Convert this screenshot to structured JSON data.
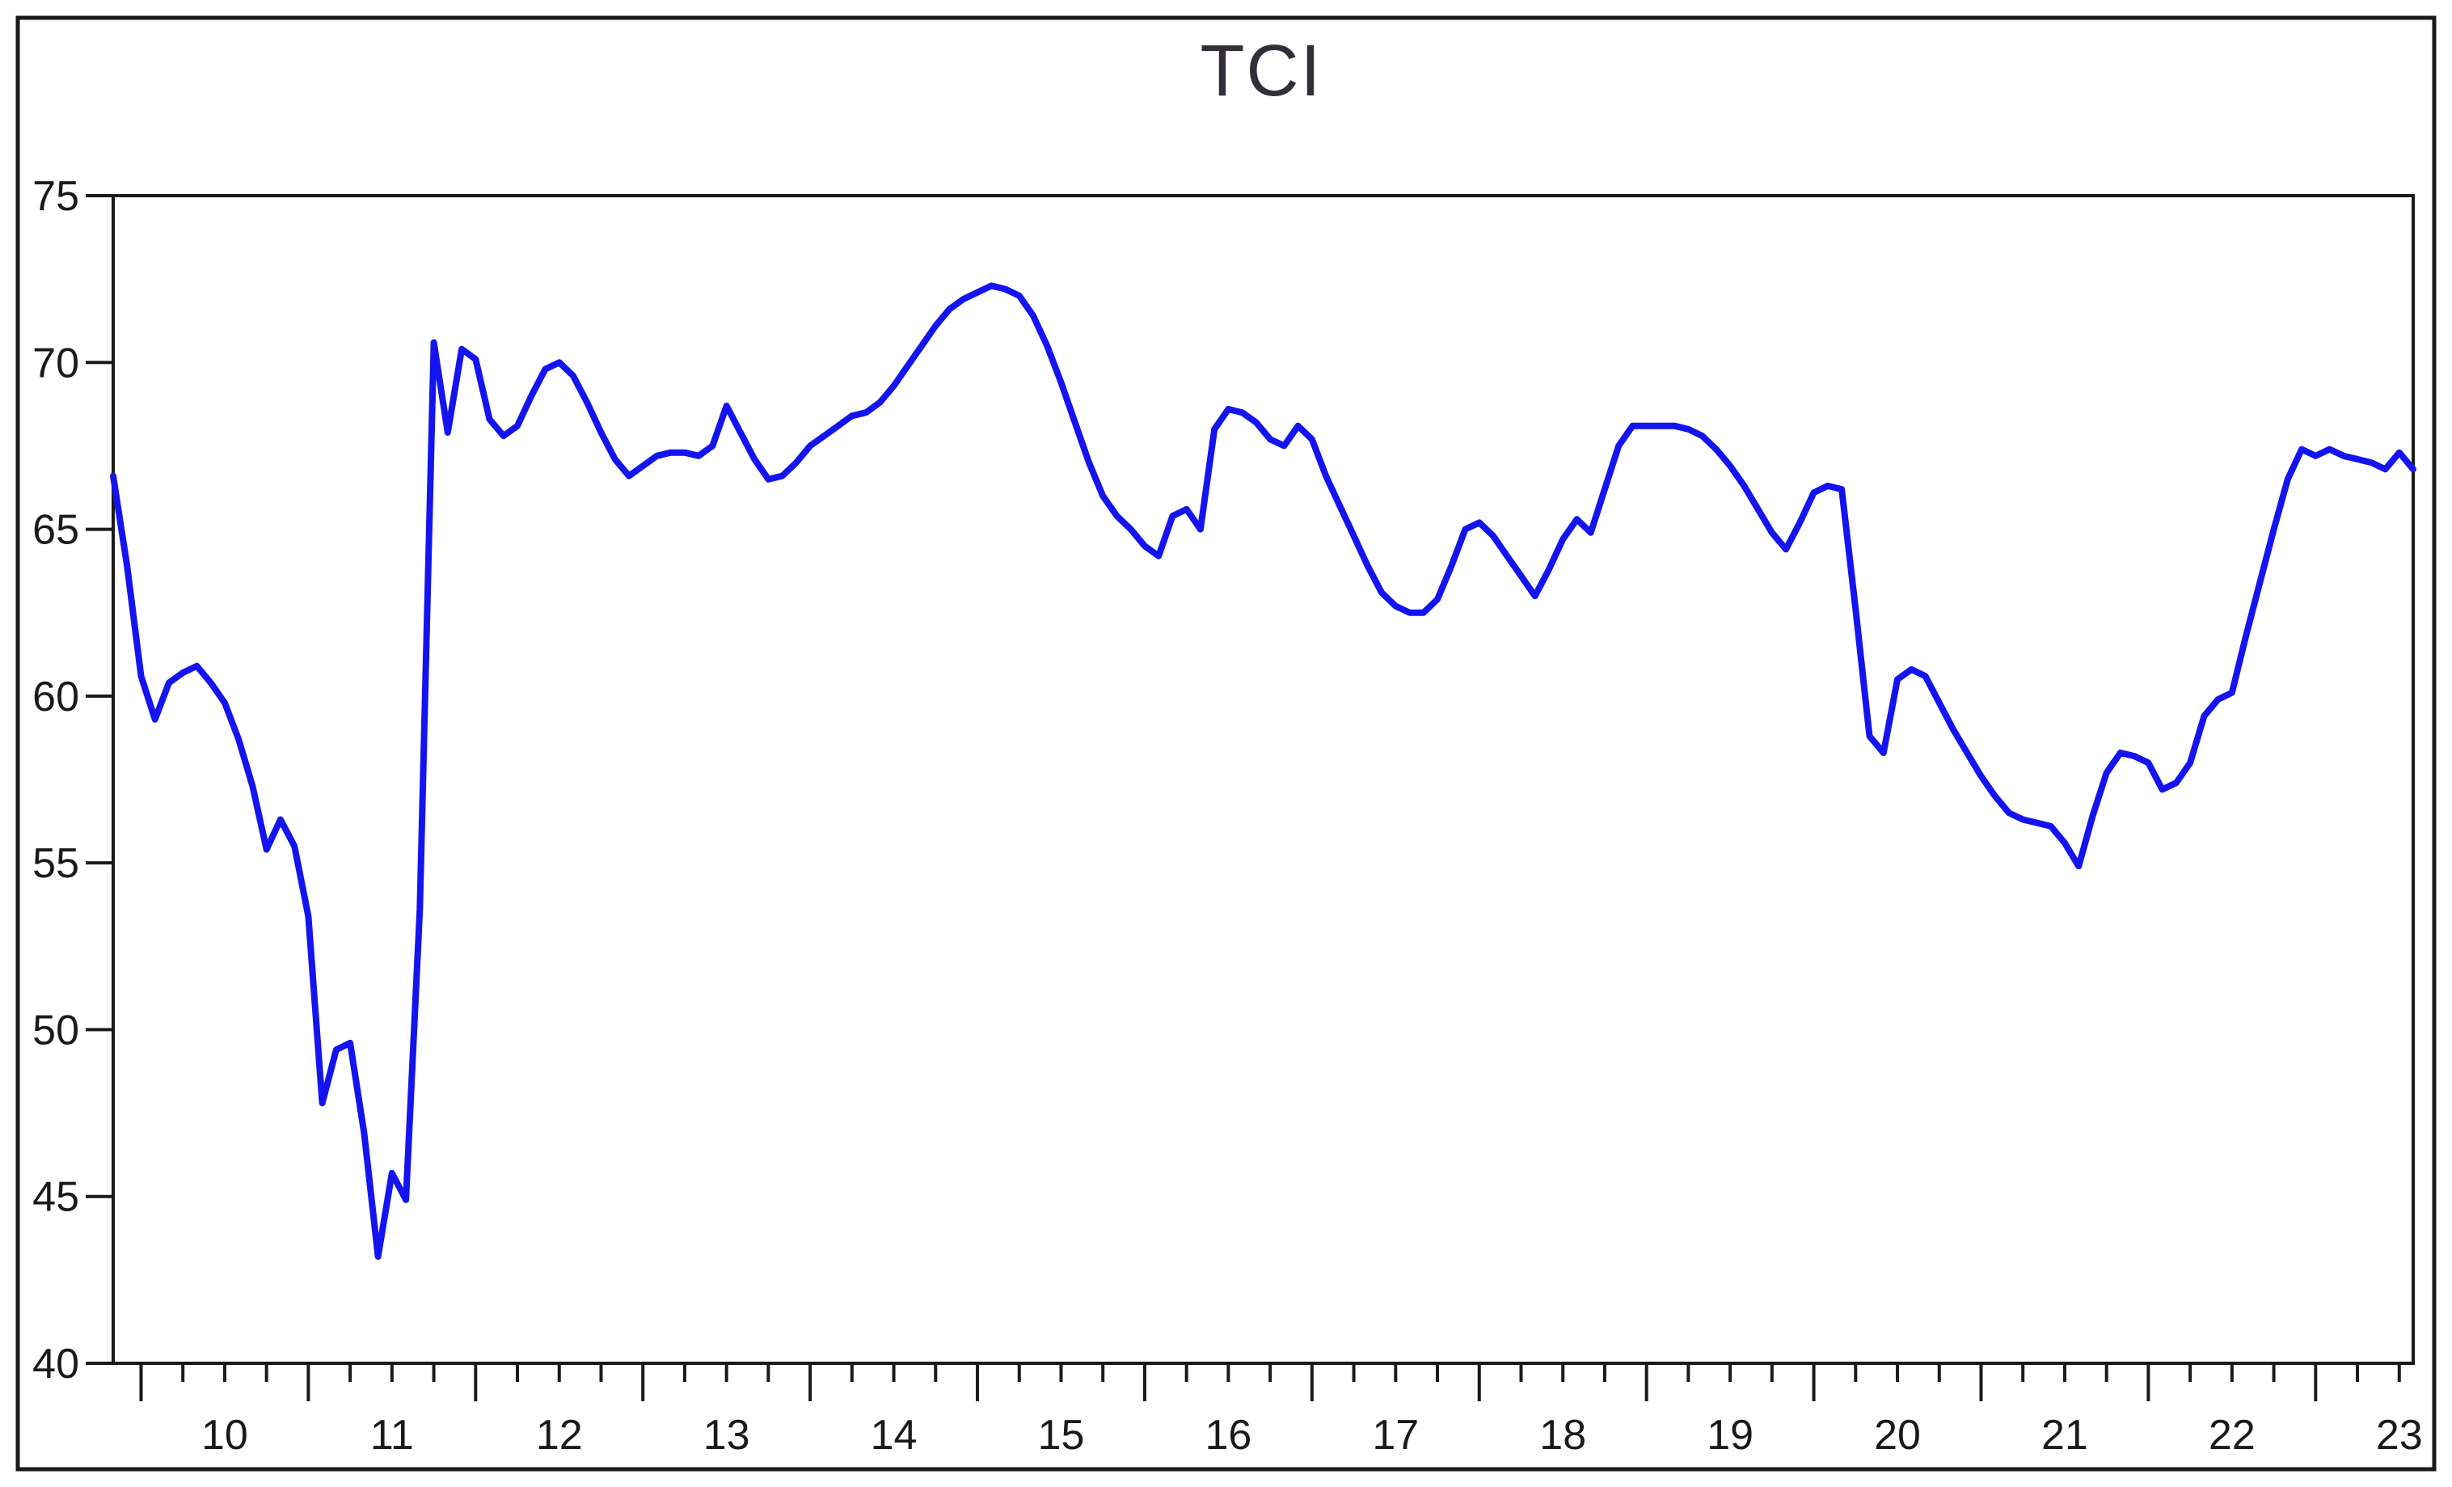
{
  "chart_data": {
    "type": "line",
    "title": "TCI",
    "xlabel": "",
    "ylabel": "",
    "ylim": [
      40,
      75
    ],
    "y_ticks": [
      75,
      70,
      65,
      60,
      55,
      50,
      45,
      40
    ],
    "x_tick_labels": [
      "10",
      "11",
      "12",
      "13",
      "14",
      "15",
      "16",
      "17",
      "18",
      "19",
      "20",
      "21",
      "22",
      "23"
    ],
    "x_year_start": 2010,
    "x_year_end": 2023,
    "minor_ticks": "quarterly",
    "grid": false,
    "legend_position": "none",
    "series": [
      {
        "name": "TCI",
        "frequency": "monthly",
        "start_period": "2009M11",
        "end_period": "2023M08",
        "values": [
          66.6,
          63.9,
          60.6,
          59.3,
          60.4,
          60.7,
          60.9,
          60.4,
          59.8,
          58.7,
          57.3,
          55.4,
          56.3,
          55.5,
          53.4,
          47.8,
          49.4,
          49.6,
          46.9,
          43.2,
          45.7,
          44.9,
          53.6,
          70.6,
          67.9,
          70.4,
          70.1,
          68.3,
          67.8,
          68.1,
          69.0,
          69.8,
          70.0,
          69.6,
          68.8,
          67.9,
          67.1,
          66.6,
          66.9,
          67.2,
          67.3,
          67.3,
          67.2,
          67.5,
          68.7,
          67.9,
          67.1,
          66.5,
          66.6,
          67.0,
          67.5,
          67.8,
          68.1,
          68.4,
          68.5,
          68.8,
          69.3,
          69.9,
          70.5,
          71.1,
          71.6,
          71.9,
          72.1,
          72.3,
          72.2,
          72.0,
          71.4,
          70.5,
          69.4,
          68.2,
          67.0,
          66.0,
          65.4,
          65.0,
          64.5,
          64.2,
          65.4,
          65.6,
          65.0,
          68.0,
          68.6,
          68.5,
          68.2,
          67.7,
          67.5,
          68.1,
          67.7,
          66.6,
          65.7,
          64.8,
          63.9,
          63.1,
          62.7,
          62.5,
          62.5,
          62.9,
          63.9,
          65.0,
          65.2,
          64.8,
          64.2,
          63.6,
          63.0,
          63.8,
          64.7,
          65.3,
          64.9,
          66.2,
          67.5,
          68.1,
          68.1,
          68.1,
          68.1,
          68.0,
          67.8,
          67.4,
          66.9,
          66.3,
          65.6,
          64.9,
          64.4,
          65.2,
          66.1,
          66.3,
          66.2,
          62.6,
          58.8,
          58.3,
          60.5,
          60.8,
          60.6,
          59.8,
          59.0,
          58.3,
          57.6,
          57.0,
          56.5,
          56.3,
          56.2,
          56.1,
          55.6,
          54.9,
          56.4,
          57.7,
          58.3,
          58.2,
          58.0,
          57.2,
          57.4,
          58.0,
          59.4,
          59.9,
          60.1,
          61.8,
          63.4,
          65.0,
          66.5,
          67.4,
          67.2,
          67.4,
          67.2,
          67.1,
          67.0,
          66.8,
          67.3,
          66.8
        ]
      }
    ],
    "colors": {
      "line": "#1414f0",
      "frame": "#1a1a1a",
      "tick_text": "#1a1a1a",
      "title_text": "#332e38",
      "background": "#ffffff"
    }
  }
}
